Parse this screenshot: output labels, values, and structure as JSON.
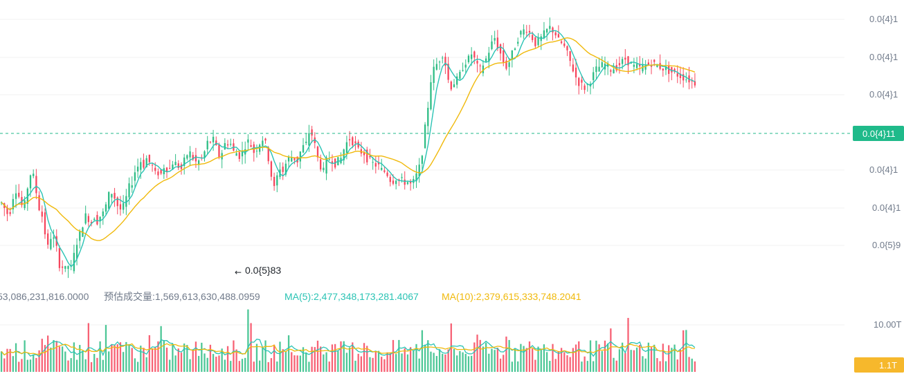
{
  "colors": {
    "up": "#2ebd85",
    "down": "#f6465d",
    "ma_short": "#2ac3b4",
    "ma_long": "#f0b90b",
    "grid": "#f0f1f2",
    "axis_text": "#707a8a",
    "price_tag_bg": "#1fba8a",
    "volume_tag_bg": "#f6b82c"
  },
  "price_axis": {
    "tick_labels": [
      "0.0{4}1",
      "0.0{4}1",
      "0.0{4}1",
      "0.0{4}1",
      "0.0{4}1",
      "0.0{5}9"
    ],
    "current_price_tag": "0.0{4}11"
  },
  "volume_axis": {
    "tick_label": "10.00T",
    "current_volume_tag": "1.1T"
  },
  "low_marker": {
    "label": "0.0{5}83"
  },
  "volume_info": {
    "volume_text": "53,086,231,816.0000",
    "estimated_text": "预估成交量:1,569,613,630,488.0959",
    "ma5_text": "MA(5):2,477,348,173,281.4067",
    "ma10_text": "MA(10):2,379,615,333,748.2041"
  },
  "chart_data": [
    {
      "type": "candlestick",
      "indicators": [
        "MA short (teal)",
        "MA long (yellow)"
      ],
      "y_scale": "relative",
      "candle_count": 240,
      "close_path": [
        0.66,
        0.62,
        0.58,
        0.6,
        0.71,
        0.76,
        0.71,
        0.64,
        0.65,
        0.78,
        0.88,
        0.86,
        0.74,
        0.62,
        0.56,
        0.43,
        0.32,
        0.4,
        0.38,
        0.31,
        0.19,
        0.17,
        0.15,
        0.18,
        0.16,
        0.26,
        0.36,
        0.42,
        0.5,
        0.56,
        0.54,
        0.51,
        0.56,
        0.52,
        0.56,
        0.58,
        0.64,
        0.72,
        0.74,
        0.7,
        0.64,
        0.61,
        0.63,
        0.7,
        0.78,
        0.82,
        0.9,
        0.94,
        0.98,
        0.95,
        1.0,
        0.97,
        0.94,
        0.88,
        0.89,
        0.88,
        0.94,
        0.93,
        0.92,
        0.97,
        0.96,
        0.94,
        0.92,
        0.98,
        1.03,
        1.04,
        1.0,
        0.97,
        0.98,
        1.0,
        1.05,
        1.12,
        1.13,
        1.14,
        1.08,
        1.02,
        1.05,
        1.11,
        1.12,
        1.11,
        1.05,
        1.04,
        1.02,
        1.05,
        1.1,
        1.13,
        1.1,
        1.05,
        1.08,
        1.12,
        1.15,
        1.11,
        1.0,
        0.87,
        0.77,
        0.86,
        0.93,
        0.9,
        0.96,
        1.0,
        1.01,
        1.0,
        0.98,
        1.05,
        1.09,
        1.11,
        1.2,
        1.18,
        1.1,
        1.0,
        0.94,
        0.9,
        0.98,
        1.0,
        0.99,
        0.96,
        0.98,
        1.0,
        1.07,
        1.12,
        1.15,
        1.13,
        1.1,
        1.06,
        1.05,
        1.04,
        1.0,
        0.98,
        0.96,
        0.95,
        0.94,
        0.91,
        0.9,
        0.88,
        0.84,
        0.83,
        0.85,
        0.83,
        0.83,
        0.82,
        0.82,
        0.8,
        0.82,
        0.87,
        0.93,
        1.05,
        1.23,
        1.4,
        1.6,
        1.68,
        1.72,
        1.76,
        1.8,
        1.72,
        1.6,
        1.55,
        1.58,
        1.6,
        1.64,
        1.7,
        1.74,
        1.76,
        1.8,
        1.76,
        1.7,
        1.68,
        1.72,
        1.76,
        1.82,
        1.88,
        1.92,
        1.86,
        1.8,
        1.74,
        1.7,
        1.74,
        1.8,
        1.86,
        1.92,
        1.96,
        1.98,
        1.99,
        1.96,
        1.92,
        1.88,
        1.9,
        1.92,
        1.95,
        1.98,
        2.0,
        1.98,
        1.95,
        1.9,
        1.88,
        1.85,
        1.8,
        1.74,
        1.68,
        1.62,
        1.58,
        1.56,
        1.54,
        1.56,
        1.6,
        1.64,
        1.68,
        1.7,
        1.71,
        1.72,
        1.7,
        1.68,
        1.69,
        1.7,
        1.72,
        1.74,
        1.76,
        1.74,
        1.72,
        1.7,
        1.7,
        1.69,
        1.7,
        1.71,
        1.72,
        1.73,
        1.72,
        1.71,
        1.7,
        1.69,
        1.68,
        1.67,
        1.66,
        1.65,
        1.64,
        1.63,
        1.62,
        1.61,
        1.6,
        1.59,
        1.58
      ]
    }
  ]
}
